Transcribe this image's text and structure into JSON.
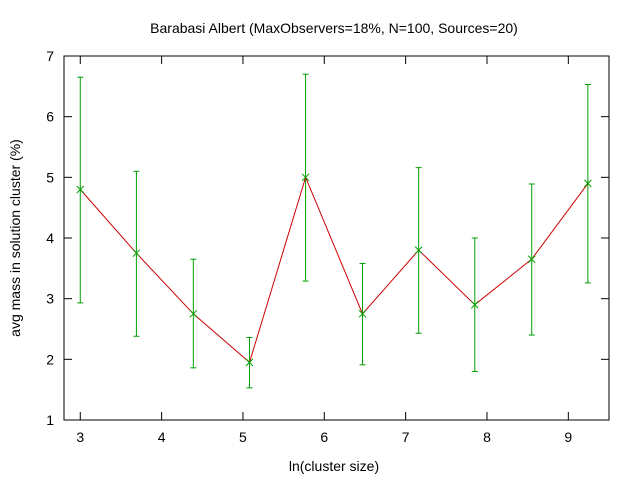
{
  "chart_data": {
    "type": "line",
    "title": "Barabasi Albert (MaxObservers=18%, N=100, Sources=20)",
    "xlabel": "ln(cluster size)",
    "ylabel": "avg mass in solution cluster (%)",
    "xlim": [
      2.8,
      9.5
    ],
    "ylim": [
      1,
      7
    ],
    "xticks": [
      3,
      4,
      5,
      6,
      7,
      8,
      9
    ],
    "yticks": [
      1,
      2,
      3,
      4,
      5,
      6,
      7
    ],
    "grid": false,
    "line_color": "#cc0000",
    "errorbar_color": "#00a000",
    "series": [
      {
        "x": [
          3.0,
          3.69,
          4.39,
          5.08,
          5.77,
          6.47,
          7.16,
          7.85,
          8.55,
          9.24
        ],
        "y": [
          4.8,
          3.75,
          2.75,
          1.95,
          5.0,
          2.75,
          3.8,
          2.9,
          3.65,
          4.9
        ],
        "y_low": [
          2.93,
          2.38,
          1.86,
          1.53,
          3.29,
          1.91,
          2.43,
          1.8,
          2.4,
          3.26
        ],
        "y_high": [
          6.65,
          5.1,
          3.65,
          2.36,
          6.7,
          3.58,
          5.16,
          4.0,
          4.89,
          6.53
        ]
      }
    ]
  }
}
